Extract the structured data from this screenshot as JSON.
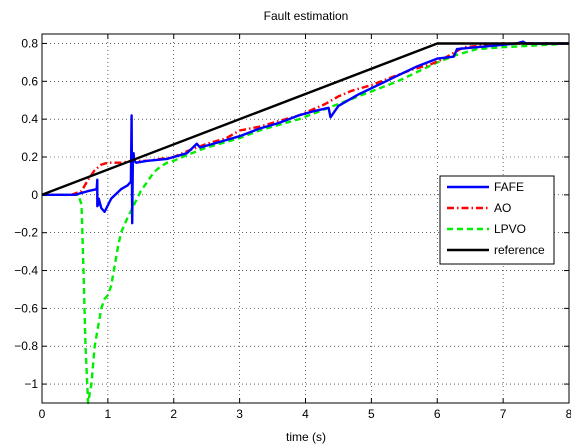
{
  "chart_data": {
    "type": "line",
    "title": "Fault estimation",
    "xlabel": "time (s)",
    "ylabel": "",
    "xlim": [
      0,
      8
    ],
    "ylim": [
      -1.1,
      0.85
    ],
    "xticks": [
      0,
      1,
      2,
      3,
      4,
      5,
      6,
      7,
      8
    ],
    "yticks": [
      -1,
      -0.8,
      -0.6,
      -0.4,
      -0.2,
      0,
      0.2,
      0.4,
      0.6,
      0.8
    ],
    "xtick_labels": [
      "0",
      "1",
      "2",
      "3",
      "4",
      "5",
      "6",
      "7",
      "8"
    ],
    "ytick_labels": [
      "−1",
      "−0.8",
      "−0.6",
      "−0.4",
      "−0.2",
      "0",
      "0.2",
      "0.4",
      "0.6",
      "0.8"
    ],
    "grid": true,
    "legend_position": "right",
    "series": [
      {
        "name": "FAFE",
        "color": "#0000ff",
        "style": "solid",
        "x": [
          0,
          0.5,
          0.7,
          0.83,
          0.84,
          0.84,
          0.86,
          0.86,
          0.9,
          0.95,
          1.05,
          1.2,
          1.3,
          1.35,
          1.36,
          1.37,
          1.38,
          1.39,
          1.4,
          1.43,
          1.6,
          1.9,
          2.2,
          2.35,
          2.4,
          2.7,
          3.0,
          3.3,
          3.6,
          3.9,
          4.1,
          4.35,
          4.38,
          4.5,
          4.8,
          5.1,
          5.4,
          5.7,
          6.0,
          6.25,
          6.3,
          6.6,
          6.9,
          7.2,
          7.3,
          7.35,
          7.6,
          8.0
        ],
        "y": [
          0,
          0,
          0.02,
          0.03,
          0.08,
          -0.06,
          -0.05,
          -0.02,
          -0.07,
          -0.09,
          -0.02,
          0.03,
          0.05,
          0.07,
          0.42,
          -0.15,
          0.2,
          0.22,
          0.18,
          0.17,
          0.18,
          0.19,
          0.22,
          0.27,
          0.25,
          0.28,
          0.31,
          0.35,
          0.38,
          0.42,
          0.44,
          0.46,
          0.41,
          0.47,
          0.53,
          0.58,
          0.63,
          0.68,
          0.72,
          0.73,
          0.77,
          0.78,
          0.79,
          0.8,
          0.81,
          0.8,
          0.8,
          0.8
        ]
      },
      {
        "name": "AO",
        "color": "#ff0000",
        "style": "dash-dot",
        "x": [
          0,
          0.45,
          0.6,
          0.7,
          0.8,
          0.9,
          1.0,
          1.2,
          1.4,
          1.6,
          1.8,
          2.0,
          2.2,
          2.5,
          2.8,
          3.0,
          3.3,
          3.6,
          3.9,
          4.1,
          4.3,
          4.5,
          4.7,
          5.0,
          5.3,
          5.6,
          5.9,
          6.1,
          6.4,
          6.7,
          7.0,
          8.0
        ],
        "y": [
          0,
          0,
          0.02,
          0.08,
          0.13,
          0.16,
          0.17,
          0.17,
          0.18,
          0.18,
          0.19,
          0.2,
          0.23,
          0.27,
          0.3,
          0.34,
          0.36,
          0.39,
          0.42,
          0.45,
          0.48,
          0.52,
          0.55,
          0.58,
          0.62,
          0.66,
          0.69,
          0.72,
          0.78,
          0.79,
          0.8,
          0.8
        ]
      },
      {
        "name": "LPVO",
        "color": "#00ee00",
        "style": "dashed",
        "x": [
          0,
          0.55,
          0.6,
          0.63,
          0.66,
          0.7,
          0.75,
          0.8,
          0.85,
          0.9,
          0.95,
          1.0,
          1.05,
          1.1,
          1.15,
          1.2,
          1.3,
          1.4,
          1.5,
          1.6,
          1.7,
          1.8,
          1.9,
          2.0,
          2.2,
          2.5,
          2.8,
          3.0,
          3.3,
          3.6,
          3.9,
          4.2,
          4.5,
          4.8,
          5.1,
          5.4,
          5.7,
          6.0,
          6.3,
          6.6,
          7.0,
          7.5,
          8.0
        ],
        "y": [
          0,
          0,
          -0.05,
          -0.4,
          -0.8,
          -1.1,
          -1.0,
          -0.8,
          -0.7,
          -0.6,
          -0.55,
          -0.53,
          -0.48,
          -0.38,
          -0.28,
          -0.2,
          -0.12,
          -0.05,
          0.02,
          0.07,
          0.12,
          0.15,
          0.17,
          0.18,
          0.21,
          0.25,
          0.28,
          0.3,
          0.34,
          0.37,
          0.4,
          0.44,
          0.48,
          0.52,
          0.56,
          0.6,
          0.65,
          0.7,
          0.74,
          0.77,
          0.78,
          0.79,
          0.8
        ]
      },
      {
        "name": "reference",
        "color": "#000000",
        "style": "solid",
        "x": [
          0,
          6,
          8
        ],
        "y": [
          0,
          0.8,
          0.8
        ]
      }
    ]
  }
}
